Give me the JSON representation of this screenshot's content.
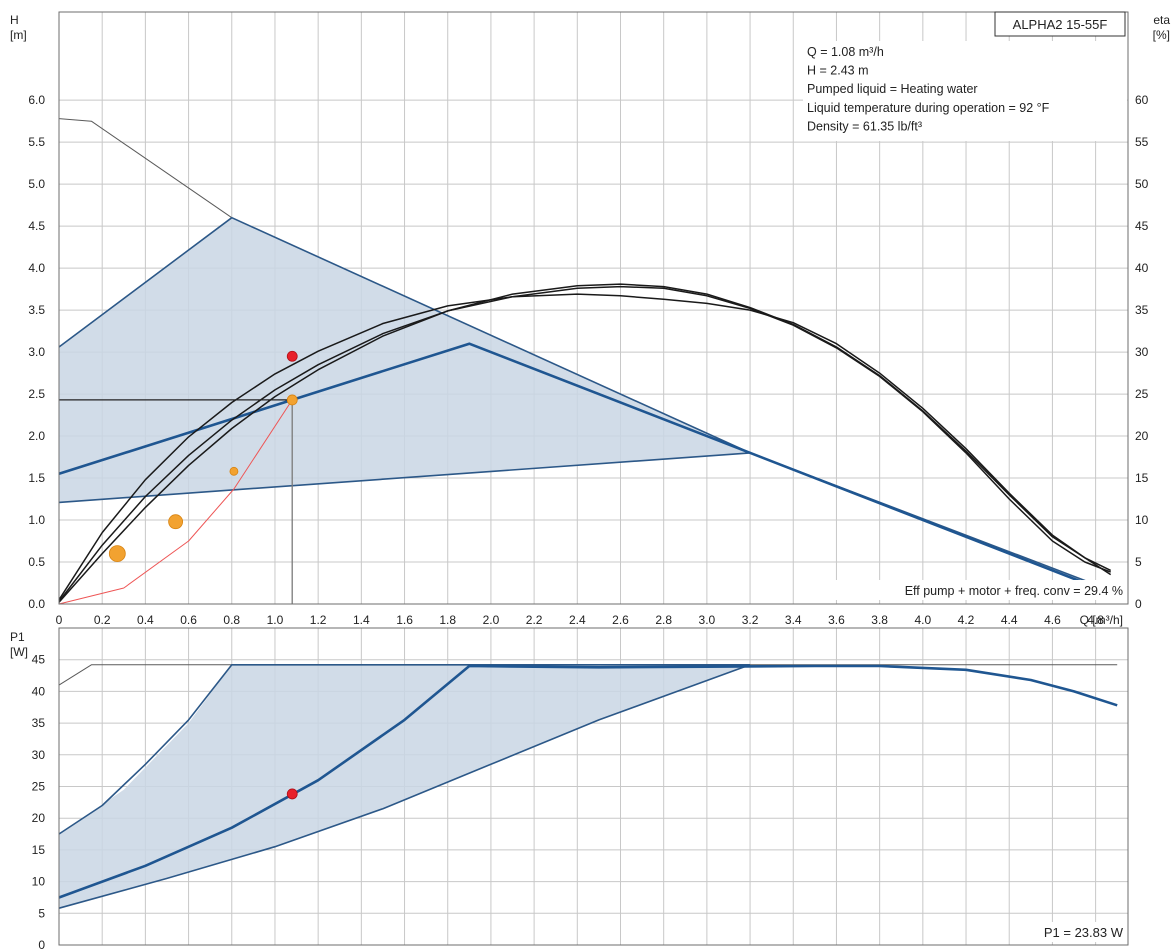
{
  "colors": {
    "grid": "#c8c8c8",
    "frame": "#6e6e6e",
    "region_fill": "#c9d6e4",
    "region_edge": "#2c5888",
    "curve_blue": "#1f5691",
    "curve_black": "#1a1a1a",
    "max_curve": "#5a5a5a",
    "duty_point": "#e8202a",
    "eta_marker": "#f2a230",
    "system_curve": "#ee5555",
    "duty_line_h": "#222222",
    "duty_line_v": "#7a7a7a"
  },
  "chart_data": [
    {
      "type": "line",
      "id": "head_efficiency",
      "title": "ALPHA2 15-55F",
      "x_axis": {
        "unit_label": "Q [m³/h]",
        "range": [
          0,
          4.95
        ],
        "ticks": [
          0,
          0.2,
          0.4,
          0.6,
          0.8,
          1.0,
          1.2,
          1.4,
          1.6,
          1.8,
          2.0,
          2.2,
          2.4,
          2.6,
          2.8,
          3.0,
          3.2,
          3.4,
          3.6,
          3.8,
          4.0,
          4.2,
          4.4,
          4.6,
          4.8
        ],
        "tick_labels": [
          "0",
          "0.2",
          "0.4",
          "0.6",
          "0.8",
          "1.0",
          "1.2",
          "1.4",
          "1.6",
          "1.8",
          "2.0",
          "2.2",
          "2.4",
          "2.6",
          "2.8",
          "3.0",
          "3.2",
          "3.4",
          "3.6",
          "3.8",
          "4.0",
          "4.2",
          "4.4",
          "4.6",
          "4.8"
        ]
      },
      "y_axis": {
        "label": "H",
        "unit": "[m]",
        "range": [
          0,
          7.05
        ],
        "ticks": [
          0,
          0.5,
          1.0,
          1.5,
          2.0,
          2.5,
          3.0,
          3.5,
          4.0,
          4.5,
          5.0,
          5.5,
          6.0
        ],
        "tick_labels": [
          "0.0",
          "0.5",
          "1.0",
          "1.5",
          "2.0",
          "2.5",
          "3.0",
          "3.5",
          "4.0",
          "4.5",
          "5.0",
          "5.5",
          "6.0"
        ]
      },
      "y2_axis": {
        "label": "eta",
        "unit": "[%]",
        "range": [
          0,
          70.5
        ],
        "ticks": [
          0,
          5,
          10,
          15,
          20,
          25,
          30,
          35,
          40,
          45,
          50,
          55,
          60
        ],
        "tick_labels": [
          "0",
          "5",
          "10",
          "15",
          "20",
          "25",
          "30",
          "35",
          "40",
          "45",
          "50",
          "55",
          "60"
        ]
      },
      "grid": true,
      "info_lines": [
        "Q = 1.08 m³/h",
        "H = 2.43 m",
        "Pumped liquid = Heating water",
        "Liquid temperature during operation = 92 °F",
        "Density = 61.35 lb/ft³"
      ],
      "footer_note": "Eff pump + motor + freq. conv = 29.4 %",
      "operating_region": [
        [
          0,
          3.06
        ],
        [
          0.8,
          4.6
        ],
        [
          3.2,
          1.8
        ],
        [
          0,
          1.21
        ]
      ],
      "series": [
        {
          "axis": "H",
          "style": "max",
          "points": [
            [
              0,
              5.78
            ],
            [
              0.15,
              5.75
            ],
            [
              0.8,
              4.6
            ]
          ]
        },
        {
          "axis": "H",
          "style": "edge",
          "points": [
            [
              0,
              3.06
            ],
            [
              0.8,
              4.6
            ],
            [
              3.2,
              1.8
            ],
            [
              4.75,
              0.25
            ]
          ]
        },
        {
          "axis": "H",
          "style": "edge",
          "points": [
            [
              0,
              1.21
            ],
            [
              3.2,
              1.8
            ]
          ]
        },
        {
          "axis": "H",
          "style": "edge",
          "points": [
            [
              3.2,
              1.8
            ],
            [
              4.78,
              0.25
            ]
          ]
        },
        {
          "axis": "H",
          "style": "active",
          "points": [
            [
              0,
              1.55
            ],
            [
              1.9,
              3.1
            ],
            [
              4.75,
              0.25
            ]
          ]
        },
        {
          "axis": "eta",
          "style": "eta",
          "points": [
            [
              0,
              0.3
            ],
            [
              0.2,
              7.0
            ],
            [
              0.4,
              12.8
            ],
            [
              0.6,
              17.7
            ],
            [
              0.8,
              21.9
            ],
            [
              1.0,
              25.5
            ],
            [
              1.2,
              28.5
            ],
            [
              1.5,
              32.2
            ],
            [
              1.8,
              34.9
            ],
            [
              2.1,
              36.6
            ],
            [
              2.4,
              37.6
            ],
            [
              2.6,
              37.8
            ],
            [
              2.8,
              37.6
            ],
            [
              3.0,
              36.7
            ],
            [
              3.2,
              35.2
            ],
            [
              3.4,
              33.2
            ],
            [
              3.6,
              30.5
            ],
            [
              3.8,
              27.1
            ],
            [
              4.0,
              22.9
            ],
            [
              4.2,
              18.0
            ],
            [
              4.4,
              12.5
            ],
            [
              4.6,
              7.5
            ],
            [
              4.75,
              5.0
            ],
            [
              4.87,
              3.8
            ]
          ]
        },
        {
          "axis": "eta",
          "style": "eta",
          "points": [
            [
              0,
              0.5
            ],
            [
              0.2,
              8.5
            ],
            [
              0.4,
              14.8
            ],
            [
              0.6,
              19.9
            ],
            [
              0.8,
              24.0
            ],
            [
              1.0,
              27.4
            ],
            [
              1.2,
              30.1
            ],
            [
              1.5,
              33.4
            ],
            [
              1.8,
              35.5
            ],
            [
              2.1,
              36.6
            ],
            [
              2.4,
              36.9
            ],
            [
              2.6,
              36.7
            ],
            [
              2.8,
              36.3
            ],
            [
              3.0,
              35.8
            ],
            [
              3.2,
              35.0
            ],
            [
              3.4,
              33.5
            ],
            [
              3.6,
              31.0
            ],
            [
              3.8,
              27.5
            ],
            [
              4.0,
              23.3
            ],
            [
              4.2,
              18.5
            ],
            [
              4.4,
              13.2
            ],
            [
              4.6,
              8.2
            ],
            [
              4.75,
              5.5
            ],
            [
              4.87,
              3.5
            ]
          ]
        },
        {
          "axis": "eta",
          "style": "eta",
          "points": [
            [
              0,
              0.2
            ],
            [
              0.2,
              6.0
            ],
            [
              0.4,
              11.5
            ],
            [
              0.6,
              16.5
            ],
            [
              0.8,
              20.9
            ],
            [
              1.0,
              24.7
            ],
            [
              1.2,
              27.9
            ],
            [
              1.5,
              31.9
            ],
            [
              1.8,
              34.9
            ],
            [
              2.1,
              36.9
            ],
            [
              2.4,
              37.9
            ],
            [
              2.6,
              38.1
            ],
            [
              2.8,
              37.8
            ],
            [
              3.0,
              36.9
            ],
            [
              3.2,
              35.3
            ],
            [
              3.4,
              33.3
            ],
            [
              3.6,
              30.6
            ],
            [
              3.8,
              27.2
            ],
            [
              4.0,
              23.0
            ],
            [
              4.2,
              18.2
            ],
            [
              4.4,
              13.0
            ],
            [
              4.6,
              8.0
            ],
            [
              4.75,
              5.5
            ],
            [
              4.87,
              4.0
            ]
          ]
        },
        {
          "axis": "H",
          "style": "system",
          "points": [
            [
              0,
              0
            ],
            [
              0.3,
              0.19
            ],
            [
              0.6,
              0.75
            ],
            [
              0.81,
              1.37
            ],
            [
              1.08,
              2.43
            ]
          ]
        },
        {
          "axis": "H",
          "style": "duty_h",
          "points": [
            [
              0,
              2.43
            ],
            [
              1.08,
              2.43
            ]
          ]
        },
        {
          "axis": "H",
          "style": "duty_v",
          "points": [
            [
              1.08,
              2.43
            ],
            [
              1.08,
              0
            ]
          ]
        }
      ],
      "markers": [
        {
          "axis": "H",
          "x": 1.08,
          "y": 2.95,
          "size": 5,
          "kind": "duty"
        },
        {
          "axis": "H",
          "x": 1.08,
          "y": 2.43,
          "size": 5,
          "kind": "eta"
        },
        {
          "axis": "H",
          "x": 0.81,
          "y": 1.58,
          "size": 4,
          "kind": "eta"
        },
        {
          "axis": "H",
          "x": 0.54,
          "y": 0.98,
          "size": 7,
          "kind": "eta"
        },
        {
          "axis": "H",
          "x": 0.27,
          "y": 0.6,
          "size": 8,
          "kind": "eta"
        }
      ]
    },
    {
      "type": "line",
      "id": "power",
      "x_axis": {
        "range": [
          0,
          4.95
        ],
        "ticks": [
          0,
          0.2,
          0.4,
          0.6,
          0.8,
          1.0,
          1.2,
          1.4,
          1.6,
          1.8,
          2.0,
          2.2,
          2.4,
          2.6,
          2.8,
          3.0,
          3.2,
          3.4,
          3.6,
          3.8,
          4.0,
          4.2,
          4.4,
          4.6,
          4.8
        ]
      },
      "y_axis": {
        "label": "P1",
        "unit": "[W]",
        "range": [
          0,
          50
        ],
        "ticks": [
          0,
          5,
          10,
          15,
          20,
          25,
          30,
          35,
          40,
          45
        ],
        "tick_labels": [
          "0",
          "5",
          "10",
          "15",
          "20",
          "25",
          "30",
          "35",
          "40",
          "45"
        ]
      },
      "grid": true,
      "footer_note": "P1 = 23.83 W",
      "operating_region": [
        [
          0,
          17.5
        ],
        [
          0.3,
          24.5
        ],
        [
          0.6,
          35
        ],
        [
          0.8,
          44.2
        ],
        [
          3.2,
          44.2
        ],
        [
          2.5,
          35.5
        ],
        [
          2.0,
          28.5
        ],
        [
          1.5,
          21.5
        ],
        [
          1.0,
          15.5
        ],
        [
          0.5,
          10.5
        ],
        [
          0,
          5.8
        ]
      ],
      "series": [
        {
          "style": "max",
          "points": [
            [
              0,
              41
            ],
            [
              0.15,
              44.2
            ],
            [
              4.9,
              44.2
            ]
          ]
        },
        {
          "style": "edge",
          "points": [
            [
              0,
              17.5
            ],
            [
              0.2,
              22
            ],
            [
              0.4,
              28.5
            ],
            [
              0.6,
              35.5
            ],
            [
              0.8,
              44.2
            ],
            [
              3.2,
              44.2
            ]
          ]
        },
        {
          "style": "edge",
          "points": [
            [
              0,
              5.8
            ],
            [
              0.5,
              10.5
            ],
            [
              1.0,
              15.5
            ],
            [
              1.5,
              21.5
            ],
            [
              2.0,
              28.5
            ],
            [
              2.5,
              35.5
            ],
            [
              3.2,
              44.2
            ]
          ]
        },
        {
          "style": "active",
          "points": [
            [
              0,
              7.5
            ],
            [
              0.4,
              12.5
            ],
            [
              0.8,
              18.5
            ],
            [
              1.2,
              26.0
            ],
            [
              1.6,
              35.5
            ],
            [
              1.9,
              44.0
            ],
            [
              2.5,
              43.8
            ],
            [
              3.0,
              43.9
            ],
            [
              3.5,
              44.0
            ],
            [
              3.8,
              44.0
            ],
            [
              4.2,
              43.4
            ],
            [
              4.5,
              41.8
            ],
            [
              4.7,
              40.0
            ],
            [
              4.9,
              37.8
            ]
          ]
        }
      ],
      "markers": [
        {
          "x": 1.08,
          "y": 23.83,
          "size": 5,
          "kind": "duty"
        }
      ]
    }
  ]
}
